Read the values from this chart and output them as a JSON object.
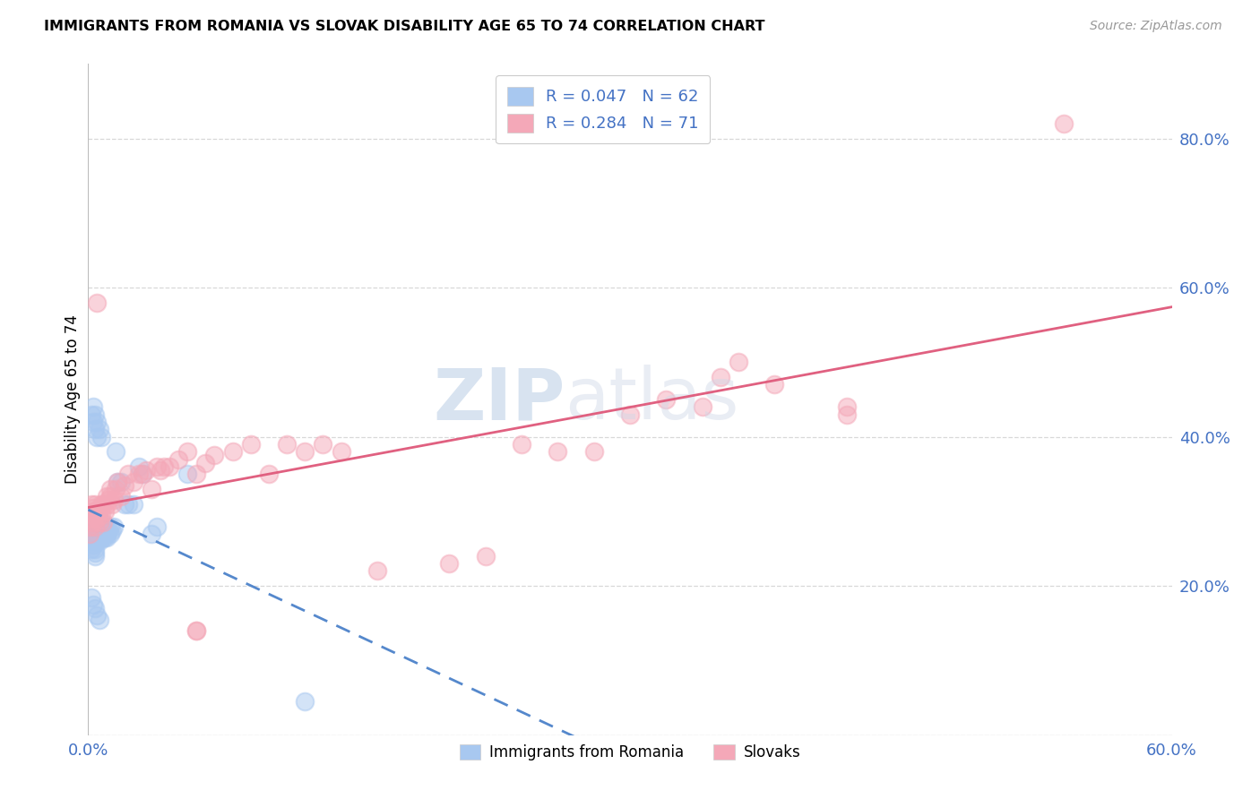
{
  "title": "IMMIGRANTS FROM ROMANIA VS SLOVAK DISABILITY AGE 65 TO 74 CORRELATION CHART",
  "source": "Source: ZipAtlas.com",
  "ylabel": "Disability Age 65 to 74",
  "xlim": [
    0.0,
    0.6
  ],
  "ylim": [
    0.0,
    0.9
  ],
  "xticks": [
    0.0,
    0.1,
    0.2,
    0.3,
    0.4,
    0.5,
    0.6
  ],
  "xticklabels": [
    "0.0%",
    "",
    "",
    "",
    "",
    "",
    "60.0%"
  ],
  "yticks": [
    0.0,
    0.2,
    0.4,
    0.6,
    0.8
  ],
  "yticklabels": [
    "",
    "20.0%",
    "40.0%",
    "60.0%",
    "80.0%"
  ],
  "romania_color": "#a8c8f0",
  "slovak_color": "#f4a8b8",
  "romania_R": "0.047",
  "romania_N": "62",
  "slovak_R": "0.284",
  "slovak_N": "71",
  "romania_line_color": "#5588cc",
  "slovak_line_color": "#e06080",
  "watermark_zip": "ZIP",
  "watermark_atlas": "atlas",
  "legend_text_color": "#4472c4",
  "tick_color": "#4472c4",
  "grid_color": "#d8d8d8",
  "romania_x": [
    0.001,
    0.001,
    0.002,
    0.002,
    0.002,
    0.002,
    0.002,
    0.003,
    0.003,
    0.003,
    0.003,
    0.003,
    0.004,
    0.004,
    0.004,
    0.004,
    0.005,
    0.005,
    0.005,
    0.005,
    0.005,
    0.006,
    0.006,
    0.006,
    0.007,
    0.007,
    0.007,
    0.008,
    0.008,
    0.008,
    0.009,
    0.009,
    0.01,
    0.01,
    0.01,
    0.011,
    0.012,
    0.012,
    0.013,
    0.014,
    0.015,
    0.016,
    0.018,
    0.02,
    0.022,
    0.025,
    0.028,
    0.03,
    0.035,
    0.038,
    0.002,
    0.003,
    0.004,
    0.005,
    0.006,
    0.003,
    0.004,
    0.005,
    0.006,
    0.007,
    0.12,
    0.055
  ],
  "romania_y": [
    0.27,
    0.28,
    0.29,
    0.27,
    0.26,
    0.25,
    0.43,
    0.265,
    0.275,
    0.285,
    0.255,
    0.42,
    0.245,
    0.24,
    0.25,
    0.41,
    0.26,
    0.27,
    0.28,
    0.265,
    0.4,
    0.27,
    0.26,
    0.265,
    0.28,
    0.285,
    0.27,
    0.265,
    0.275,
    0.28,
    0.27,
    0.265,
    0.275,
    0.27,
    0.265,
    0.275,
    0.28,
    0.27,
    0.275,
    0.28,
    0.38,
    0.34,
    0.34,
    0.31,
    0.31,
    0.31,
    0.36,
    0.35,
    0.27,
    0.28,
    0.185,
    0.175,
    0.17,
    0.16,
    0.155,
    0.44,
    0.43,
    0.42,
    0.41,
    0.4,
    0.045,
    0.35
  ],
  "slovak_x": [
    0.001,
    0.001,
    0.002,
    0.002,
    0.002,
    0.003,
    0.003,
    0.003,
    0.004,
    0.004,
    0.004,
    0.005,
    0.005,
    0.005,
    0.006,
    0.006,
    0.007,
    0.007,
    0.008,
    0.008,
    0.009,
    0.01,
    0.01,
    0.011,
    0.012,
    0.012,
    0.013,
    0.014,
    0.015,
    0.016,
    0.018,
    0.02,
    0.022,
    0.025,
    0.028,
    0.03,
    0.032,
    0.035,
    0.038,
    0.04,
    0.042,
    0.045,
    0.05,
    0.055,
    0.06,
    0.065,
    0.07,
    0.08,
    0.09,
    0.1,
    0.11,
    0.12,
    0.13,
    0.14,
    0.16,
    0.2,
    0.22,
    0.24,
    0.26,
    0.28,
    0.3,
    0.32,
    0.34,
    0.38,
    0.06,
    0.06,
    0.35,
    0.36,
    0.42,
    0.42,
    0.54
  ],
  "slovak_y": [
    0.27,
    0.28,
    0.3,
    0.31,
    0.29,
    0.285,
    0.295,
    0.305,
    0.28,
    0.3,
    0.31,
    0.29,
    0.3,
    0.58,
    0.285,
    0.3,
    0.31,
    0.295,
    0.285,
    0.31,
    0.3,
    0.32,
    0.31,
    0.315,
    0.32,
    0.33,
    0.31,
    0.315,
    0.33,
    0.34,
    0.32,
    0.335,
    0.35,
    0.34,
    0.35,
    0.35,
    0.355,
    0.33,
    0.36,
    0.355,
    0.36,
    0.36,
    0.37,
    0.38,
    0.35,
    0.365,
    0.375,
    0.38,
    0.39,
    0.35,
    0.39,
    0.38,
    0.39,
    0.38,
    0.22,
    0.23,
    0.24,
    0.39,
    0.38,
    0.38,
    0.43,
    0.45,
    0.44,
    0.47,
    0.14,
    0.14,
    0.48,
    0.5,
    0.43,
    0.44,
    0.82
  ]
}
